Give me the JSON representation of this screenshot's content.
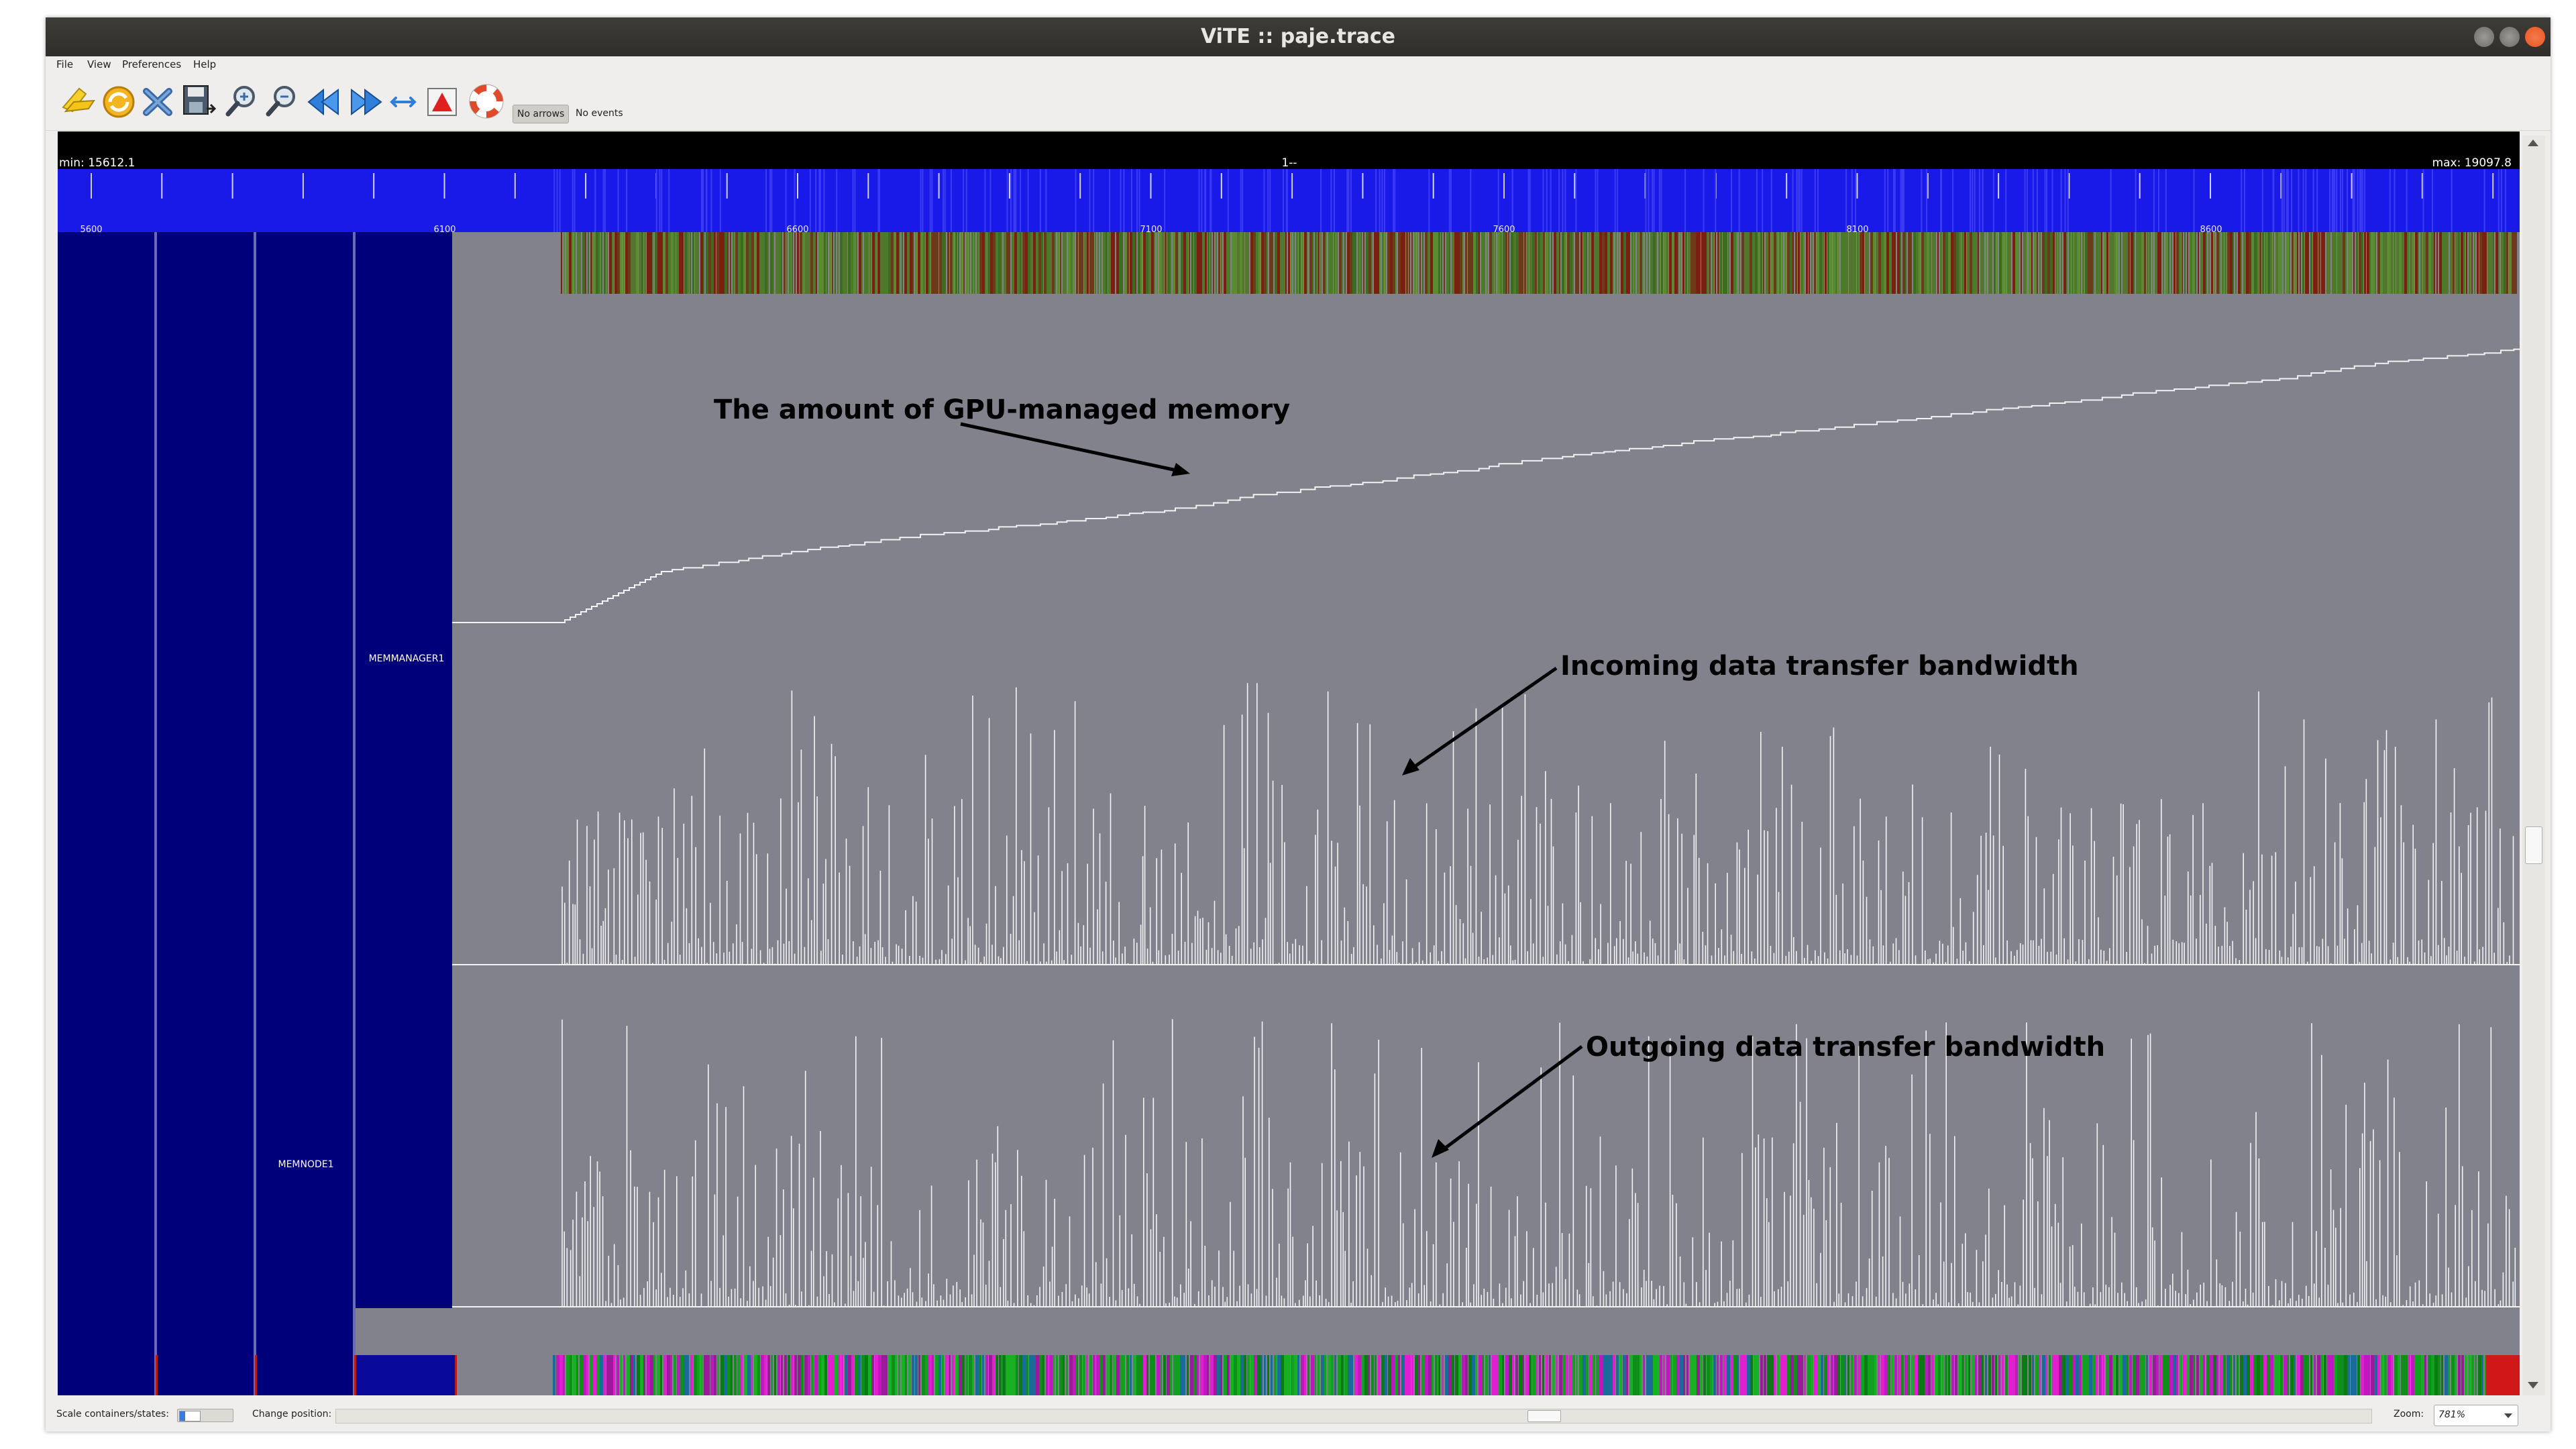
{
  "window": {
    "title": "ViTE :: paje.trace",
    "controls": [
      "minimize",
      "maximize",
      "close"
    ]
  },
  "menu": [
    {
      "label": "File"
    },
    {
      "label": "View"
    },
    {
      "label": "Preferences"
    },
    {
      "label": "Help"
    }
  ],
  "toolbar": {
    "icons": [
      "open-icon",
      "reload-icon",
      "close-file-icon",
      "export-icon",
      "zoom-in-icon",
      "zoom-out-icon",
      "goto-start-icon",
      "goto-end-icon",
      "fit-width-icon",
      "toggle-up-icon",
      "help-icon"
    ],
    "arrows_label": "No arrows",
    "events_label": "No events"
  },
  "trace": {
    "min_label": "min: 15612.1",
    "center_label": "1--",
    "max_label": "max: 19097.8",
    "ruler_ticks": [
      "5600",
      "6100",
      "6600",
      "7100",
      "7600",
      "8100",
      "8600"
    ],
    "containers": [
      "MEMMANAGER1",
      "MEMNODE1"
    ]
  },
  "annotations": {
    "memory": "The amount of GPU-managed memory",
    "incoming": "Incoming data transfer bandwidth",
    "outgoing": "Outgoing data transfer bandwidth"
  },
  "statusbar": {
    "scale_label": "Scale containers/states:",
    "position_label": "Change position:",
    "zoom_label": "Zoom:",
    "zoom_value": "781%"
  },
  "colors": {
    "ruler_bg": "#1a1ae8",
    "container_bg": "#00007a",
    "render_bg": "#81828c",
    "var_line": "#f2f2f2",
    "close_button": "#e95420"
  }
}
